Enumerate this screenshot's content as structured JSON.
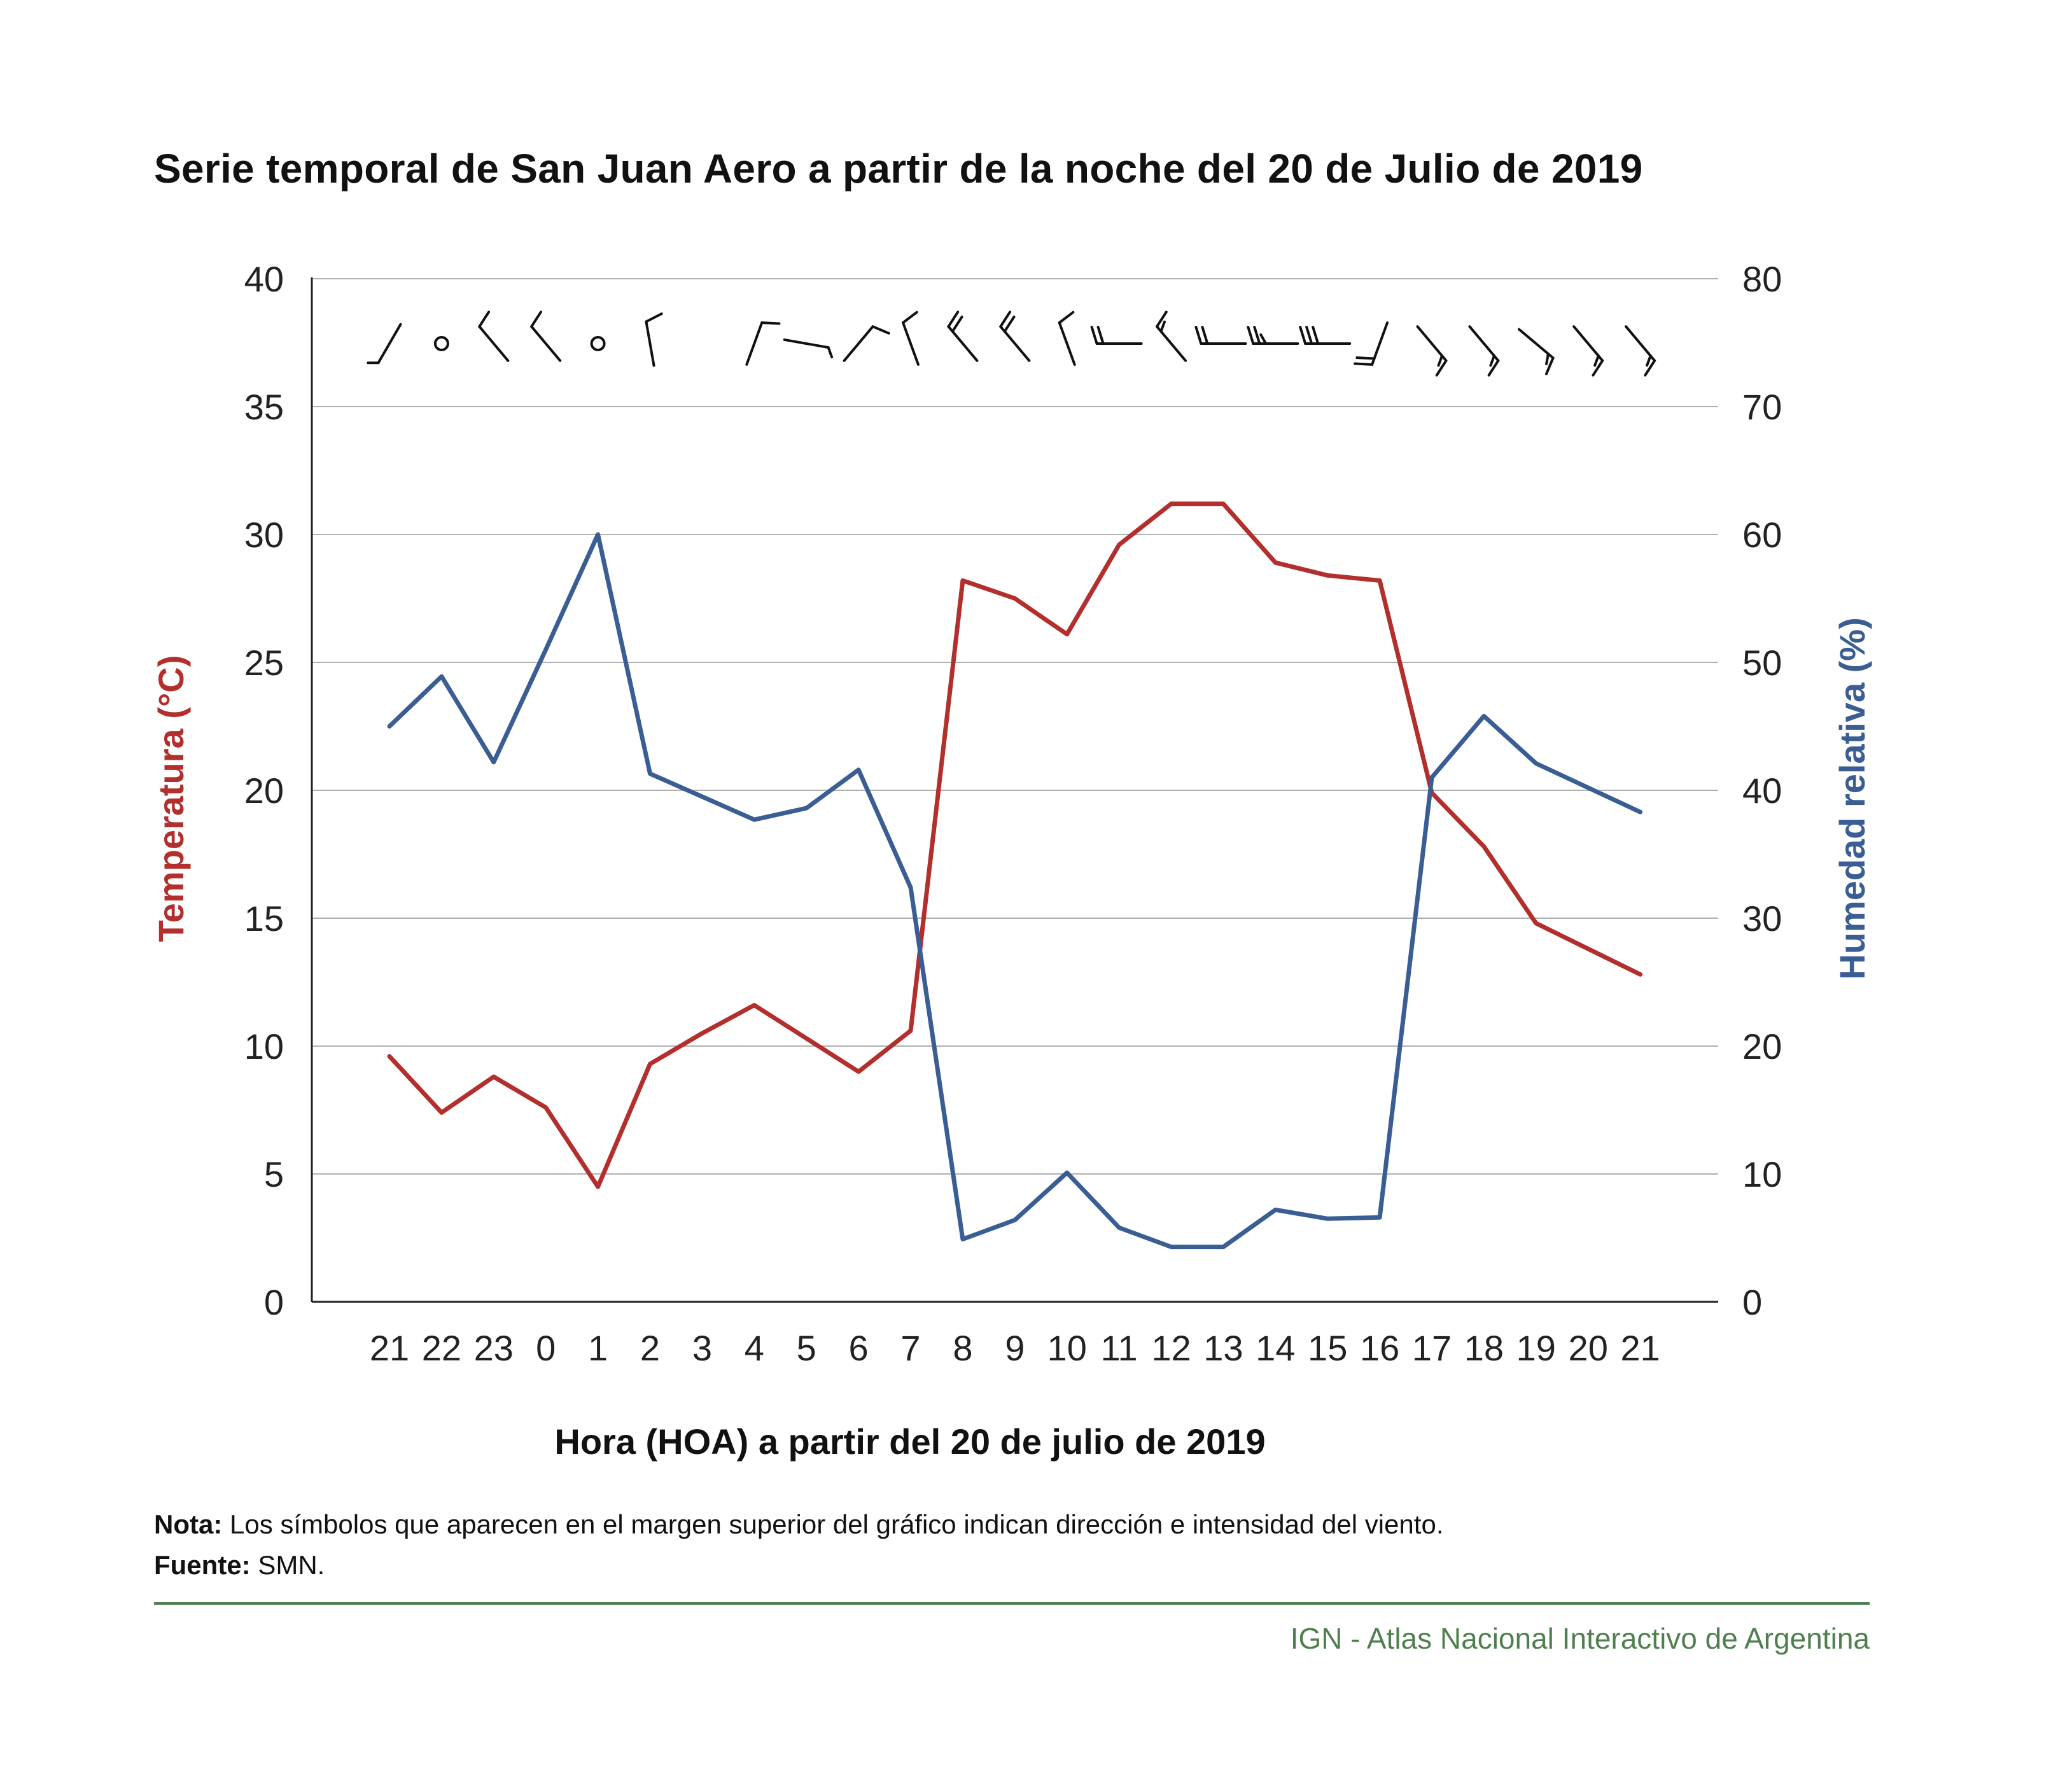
{
  "chart_data": {
    "type": "line",
    "title": "Serie temporal de San Juan Aero a partir de la noche del 20 de Julio de 2019",
    "xlabel": "Hora (HOA) a partir del 20 de julio de 2019",
    "ylabel_left": "Temperatura (°C)",
    "ylabel_right": "Humedad relativa (%)",
    "categories": [
      "21",
      "22",
      "23",
      "0",
      "1",
      "2",
      "3",
      "4",
      "5",
      "6",
      "7",
      "8",
      "9",
      "10",
      "11",
      "12",
      "13",
      "14",
      "15",
      "16",
      "17",
      "18",
      "19",
      "20",
      "21"
    ],
    "ylim_left": [
      0,
      40
    ],
    "yticks_left": [
      "0",
      "5",
      "10",
      "15",
      "20",
      "25",
      "30",
      "35",
      "40"
    ],
    "ylim_right": [
      0,
      80
    ],
    "yticks_right": [
      "0",
      "10",
      "20",
      "30",
      "40",
      "50",
      "60",
      "70",
      "80"
    ],
    "grid": true,
    "series": [
      {
        "name": "Temperatura (°C)",
        "axis": "left",
        "color": "#b22f2d",
        "values": [
          9.6,
          7.4,
          8.8,
          7.6,
          4.5,
          9.3,
          10.5,
          11.6,
          10.3,
          9.0,
          10.6,
          28.2,
          27.5,
          26.1,
          29.6,
          31.2,
          31.2,
          28.9,
          28.4,
          28.2,
          19.9,
          17.8,
          14.8,
          13.8,
          12.8
        ]
      },
      {
        "name": "Humedad relativa (%)",
        "axis": "right",
        "color": "#3a5e93",
        "values": [
          45.0,
          48.9,
          42.2,
          51.0,
          60.0,
          41.3,
          39.5,
          37.7,
          38.6,
          41.6,
          32.4,
          4.9,
          6.4,
          10.1,
          5.8,
          4.3,
          4.3,
          7.2,
          6.5,
          6.6,
          41.0,
          45.8,
          42.1,
          40.2,
          38.3
        ]
      }
    ],
    "wind_symbols": {
      "description": "Símbolos de viento (barbas) en el margen superior",
      "speeds_kt": [
        5,
        0,
        10,
        10,
        0,
        10,
        null,
        10,
        5,
        10,
        10,
        20,
        20,
        10,
        20,
        15,
        20,
        25,
        30,
        20,
        15,
        15,
        15,
        15,
        15
      ],
      "directions_deg": [
        210,
        null,
        320,
        320,
        null,
        350,
        null,
        20,
        100,
        40,
        340,
        320,
        320,
        340,
        270,
        320,
        270,
        270,
        270,
        200,
        140,
        140,
        130,
        140,
        140
      ]
    }
  },
  "title": "Serie temporal de San Juan Aero a partir de la noche del 20 de Julio de 2019",
  "note_label": "Nota:",
  "note_text": " Los símbolos que aparecen en el margen superior del gráfico indican dirección e intensidad del viento.",
  "source_label": "Fuente:",
  "source_text": " SMN.",
  "credit": "IGN - Atlas Nacional Interactivo de Argentina",
  "colors": {
    "temperature": "#b22f2d",
    "humidity": "#3a5e93",
    "credit": "#4f7f4f",
    "grid": "#b0b0b0"
  }
}
